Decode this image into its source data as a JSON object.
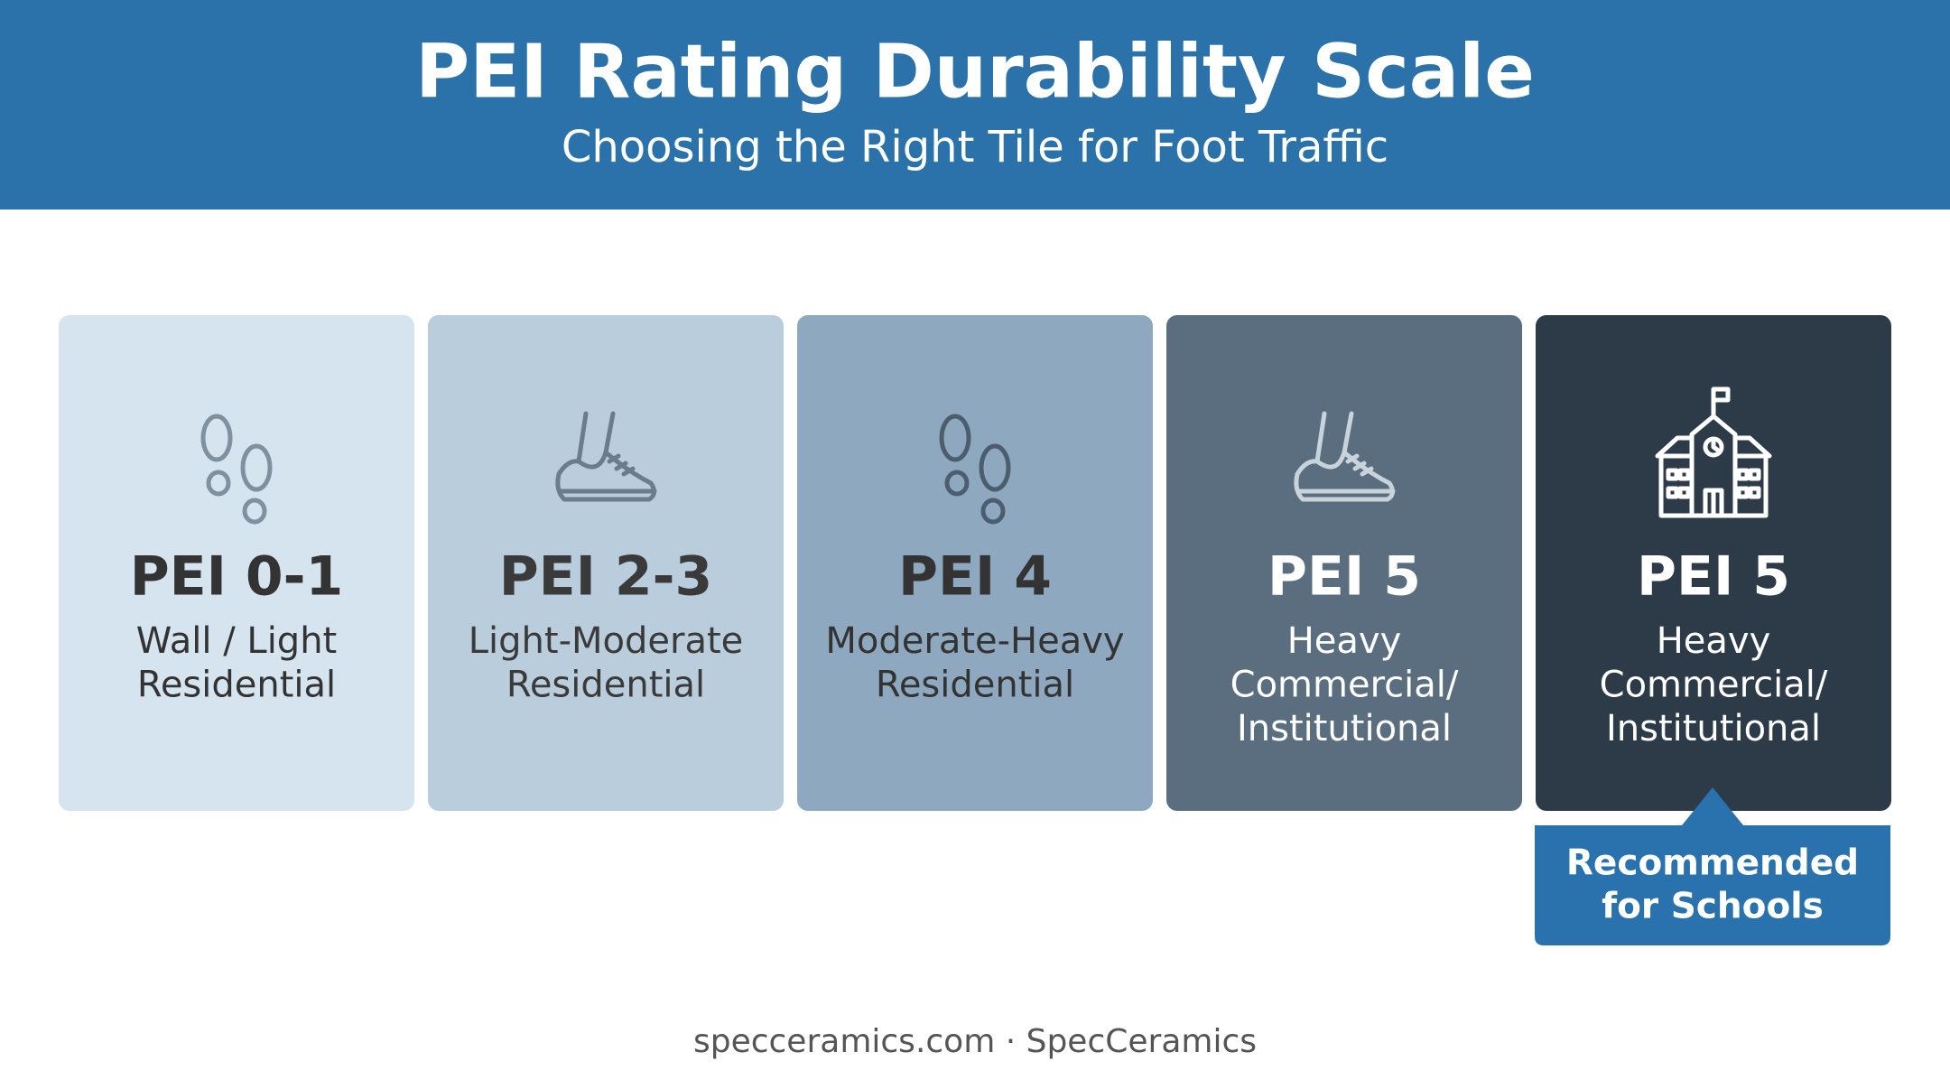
{
  "header": {
    "title": "PEI Rating Durability Scale",
    "subtitle": "Choosing the Right Tile for Foot Traffic"
  },
  "cards": [
    {
      "label": "PEI 0-1",
      "description": [
        "Wall / Light",
        "Residential"
      ]
    },
    {
      "label": "PEI 2-3",
      "description": [
        "Light-Moderate",
        "Residential"
      ]
    },
    {
      "label": "PEI 4",
      "description": [
        "Moderate-Heavy",
        "Residential"
      ]
    },
    {
      "label": "PEI 5",
      "description": [
        "Heavy",
        "Commercial/",
        "Institutional"
      ]
    },
    {
      "label": "PEI 5",
      "description": [
        "Heavy",
        "Commercial/",
        "Institutional"
      ]
    }
  ],
  "callout": {
    "lines": [
      "Recommended",
      "for Schools"
    ]
  },
  "footer": "specceramics.com · SpecCeramics"
}
